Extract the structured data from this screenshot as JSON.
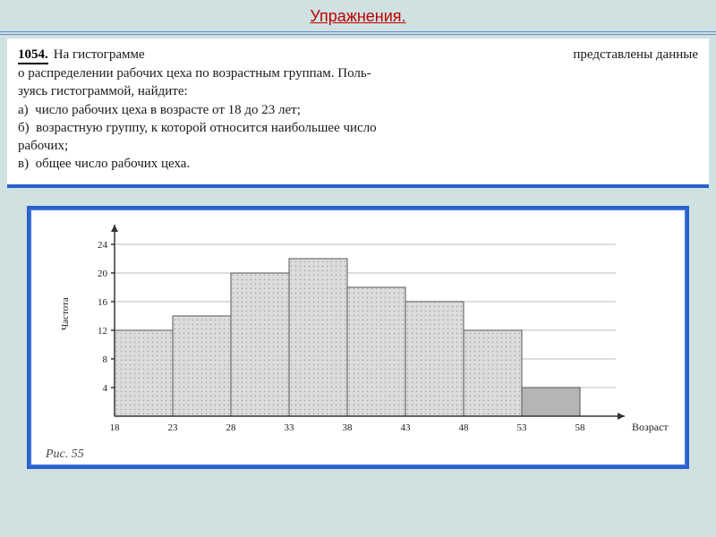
{
  "title": "Упражнения.",
  "problem": {
    "number": "1054.",
    "line_intro_left": "На гистограмме",
    "line_intro_right": "представлены данные",
    "body1": "о распределении рабочих цеха по возрастным группам. Поль-",
    "body2": "зуясь гистограммой, найдите:",
    "item_a": "а)  число рабочих цеха в возрасте от 18 до 23 лет;",
    "item_b": "б)  возрастную группу, к которой относится наибольшее число",
    "item_b2": "рабочих;",
    "item_c": "в)  общее число рабочих цеха."
  },
  "chart": {
    "type": "histogram",
    "x_label": "Возраст",
    "y_label": "Частота",
    "x_ticks": [
      18,
      23,
      28,
      33,
      38,
      43,
      48,
      53,
      58
    ],
    "y_ticks": [
      4,
      8,
      12,
      16,
      20,
      24
    ],
    "y_max": 26,
    "bars": [
      {
        "x_start": 18,
        "x_end": 23,
        "value": 12,
        "fill": "#d8d8d8"
      },
      {
        "x_start": 23,
        "x_end": 28,
        "value": 14,
        "fill": "#d8d8d8"
      },
      {
        "x_start": 28,
        "x_end": 33,
        "value": 20,
        "fill": "#d8d8d8"
      },
      {
        "x_start": 33,
        "x_end": 38,
        "value": 22,
        "fill": "#d8d8d8"
      },
      {
        "x_start": 38,
        "x_end": 43,
        "value": 18,
        "fill": "#d8d8d8"
      },
      {
        "x_start": 43,
        "x_end": 48,
        "value": 16,
        "fill": "#d8d8d8"
      },
      {
        "x_start": 48,
        "x_end": 53,
        "value": 12,
        "fill": "#d8d8d8"
      },
      {
        "x_start": 53,
        "x_end": 58,
        "value": 4,
        "fill": "#b5b5b5"
      }
    ],
    "grid_color": "#bbbbbb",
    "axis_color": "#333333",
    "background": "#ffffff"
  },
  "fig_label": "Рис. 55",
  "colors": {
    "page_bg": "#cfe1e1",
    "title_color": "#c00000",
    "frame_blue": "#2a5fcc"
  }
}
